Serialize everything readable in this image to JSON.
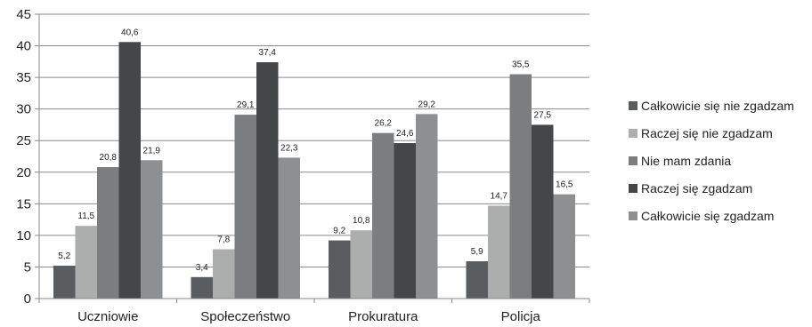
{
  "chart_data": {
    "type": "bar",
    "categories": [
      "Uczniowie",
      "Społeczeństwo",
      "Prokuratura",
      "Policja"
    ],
    "series": [
      {
        "name": "Całkowicie się nie zgadzam",
        "values": [
          5.2,
          3.4,
          9.2,
          5.9
        ],
        "labels": [
          "5,2",
          "3,4",
          "9,2",
          "5,9"
        ],
        "color": "#5a5d60"
      },
      {
        "name": "Raczej się nie zgadzam",
        "values": [
          11.5,
          7.8,
          10.8,
          14.7
        ],
        "labels": [
          "11,5",
          "7,8",
          "10,8",
          "14,7"
        ],
        "color": "#acadad"
      },
      {
        "name": "Nie mam zdania",
        "values": [
          20.8,
          29.1,
          26.2,
          35.5
        ],
        "labels": [
          "20,8",
          "29,1",
          "26,2",
          "35,5"
        ],
        "color": "#7b7d7f"
      },
      {
        "name": "Raczej się zgadzam",
        "values": [
          40.6,
          37.4,
          24.6,
          27.5
        ],
        "labels": [
          "40,6",
          "37,4",
          "24,6",
          "27,5"
        ],
        "color": "#444648"
      },
      {
        "name": "Całkowicie się zgadzam",
        "values": [
          21.9,
          22.3,
          29.2,
          16.5
        ],
        "labels": [
          "21,9",
          "22,3",
          "29,2",
          "16,5"
        ],
        "color": "#8d8f91"
      }
    ],
    "yticks": [
      "0",
      "5",
      "10",
      "15",
      "20",
      "25",
      "30",
      "35",
      "40",
      "45"
    ],
    "ylim": [
      0,
      45
    ],
    "grid": true,
    "legend": "right"
  }
}
